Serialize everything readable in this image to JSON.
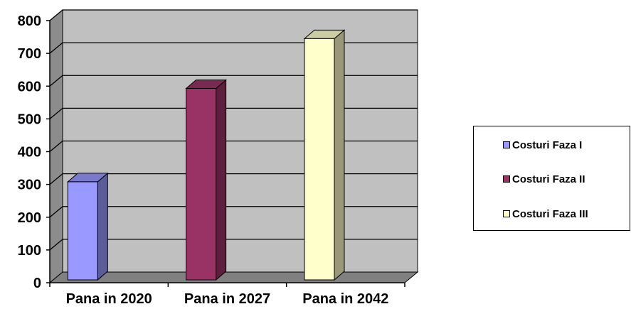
{
  "chart_data": {
    "type": "bar",
    "style": "3d-column",
    "categories": [
      "Pana in 2020",
      "Pana in 2027",
      "Pana in 2042"
    ],
    "series": [
      {
        "name": "Costuri Faza I",
        "color": "#9999ff",
        "values": [
          308,
          null,
          null
        ]
      },
      {
        "name": "Costuri Faza II",
        "color": "#993366",
        "values": [
          null,
          593,
          null
        ]
      },
      {
        "name": "Costuri Faza III",
        "color": "#ffffcc",
        "values": [
          null,
          null,
          745
        ]
      }
    ],
    "title": "",
    "xlabel": "",
    "ylabel": "",
    "ylim": [
      0,
      800
    ],
    "yticks": [
      "0",
      "100",
      "200",
      "300",
      "400",
      "500",
      "600",
      "700",
      "800"
    ],
    "grid": true,
    "legend_position": "right",
    "plot_background": "#c0c0c0"
  }
}
